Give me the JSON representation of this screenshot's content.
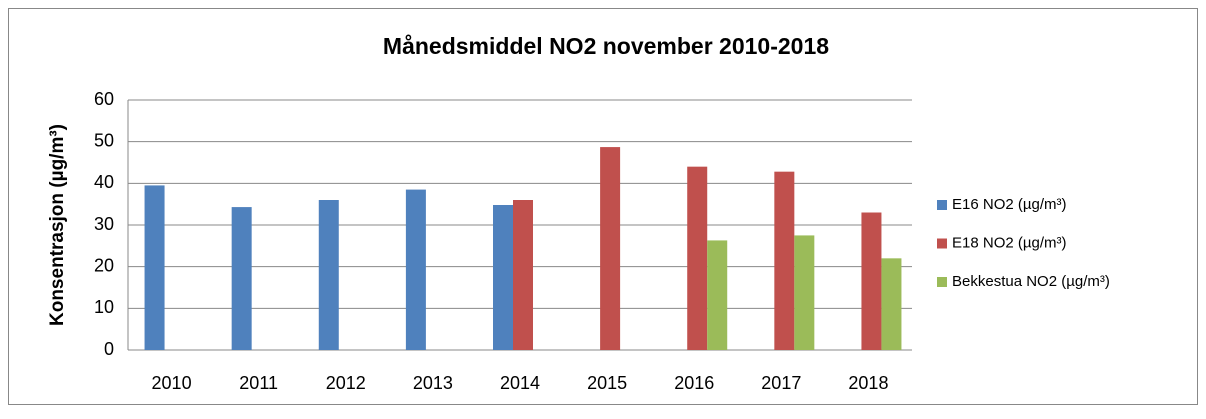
{
  "chart_data": {
    "type": "bar",
    "title": "Månedsmiddel NO2 november 2010-2018",
    "y_label": "Konsentrasjon (µg/m³)",
    "categories": [
      "2010",
      "2011",
      "2012",
      "2013",
      "2014",
      "2015",
      "2016",
      "2017",
      "2018"
    ],
    "series": [
      {
        "name": "E16  NO2 (µg/m³)",
        "color": "#4f81bd",
        "values": [
          39.5,
          34.3,
          36,
          38.5,
          34.8,
          null,
          null,
          null,
          null
        ]
      },
      {
        "name": "E18 NO2 (µg/m³)",
        "color": "#c0504d",
        "values": [
          null,
          null,
          null,
          null,
          36,
          48.7,
          44,
          42.8,
          33
        ]
      },
      {
        "name": "Bekkestua NO2  (µg/m³)",
        "color": "#9bbb59",
        "values": [
          null,
          null,
          null,
          null,
          null,
          null,
          26.3,
          27.5,
          22
        ]
      }
    ],
    "ylim": [
      0,
      60
    ],
    "yticks": [
      0,
      10,
      20,
      30,
      40,
      50,
      60
    ],
    "grid": true,
    "legend": "right"
  }
}
